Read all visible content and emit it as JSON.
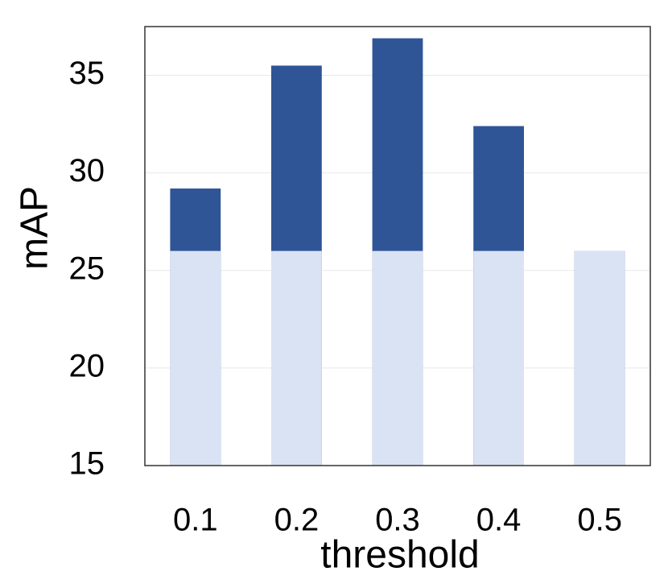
{
  "chart_data": {
    "type": "bar",
    "x_label": "threshold",
    "y_label": "mAP",
    "categories": [
      "0.1",
      "0.2",
      "0.3",
      "0.4",
      "0.5"
    ],
    "series": [
      {
        "color": "#2f5597",
        "values": [
          29.2,
          35.5,
          36.9,
          32.4,
          26
        ]
      },
      {
        "color": "#dae3f3",
        "values": [
          26,
          26,
          26,
          26,
          26
        ]
      }
    ],
    "ylim": [
      15,
      37.5
    ],
    "yticks": [
      15,
      20,
      25,
      30,
      35
    ],
    "grid": true
  }
}
